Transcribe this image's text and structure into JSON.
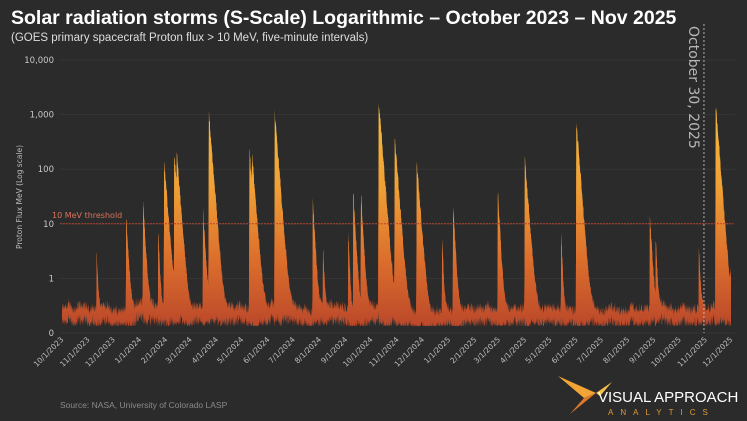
{
  "chart_data": {
    "type": "area",
    "title": "Solar radiation storms (S-Scale) Logarithmic – October 2023 – Nov 2025",
    "subtitle": "(GOES primary spacecraft Proton flux > 10 MeV, five-minute intervals)",
    "ylabel": "Proton Flux MeV (Log scale)",
    "xlabel": "",
    "yscale": "log",
    "ylim": [
      0.1,
      10000
    ],
    "xlim": [
      "2023-10-01",
      "2025-12-01"
    ],
    "grid": true,
    "yticks": [
      {
        "value": 0.1,
        "label": "0"
      },
      {
        "value": 1,
        "label": "1"
      },
      {
        "value": 10,
        "label": "10"
      },
      {
        "value": 100,
        "label": "100"
      },
      {
        "value": 1000,
        "label": "1,000"
      },
      {
        "value": 10000,
        "label": "10,000"
      }
    ],
    "xticks": [
      "10/1/2023",
      "11/1/2023",
      "12/1/2023",
      "1/1/2024",
      "2/1/2024",
      "3/1/2024",
      "4/1/2024",
      "5/1/2024",
      "6/1/2024",
      "7/1/2024",
      "8/1/2024",
      "9/1/2024",
      "10/1/2024",
      "11/1/2024",
      "12/1/2024",
      "1/1/2025",
      "2/1/2025",
      "3/1/2025",
      "4/1/2025",
      "5/1/2025",
      "6/1/2025",
      "7/1/2025",
      "8/1/2025",
      "9/1/2025",
      "10/1/2025",
      "11/1/2025",
      "12/1/2025"
    ],
    "baseline_flux_range": [
      0.15,
      0.45
    ],
    "events": [
      {
        "date": "2023-11-11",
        "peak": 2.7
      },
      {
        "date": "2023-12-16",
        "peak": 13
      },
      {
        "date": "2024-01-05",
        "peak": 25
      },
      {
        "date": "2024-01-23",
        "peak": 7
      },
      {
        "date": "2024-01-30",
        "peak": 135
      },
      {
        "date": "2024-02-11",
        "peak": 180
      },
      {
        "date": "2024-02-14",
        "peak": 130
      },
      {
        "date": "2024-03-16",
        "peak": 17
      },
      {
        "date": "2024-03-23",
        "peak": 1000
      },
      {
        "date": "2024-05-10",
        "peak": 210
      },
      {
        "date": "2024-05-13",
        "peak": 130
      },
      {
        "date": "2024-06-09",
        "peak": 1050
      },
      {
        "date": "2024-07-24",
        "peak": 25
      },
      {
        "date": "2024-08-05",
        "peak": 3.6
      },
      {
        "date": "2024-09-04",
        "peak": 6
      },
      {
        "date": "2024-09-10",
        "peak": 34
      },
      {
        "date": "2024-09-19",
        "peak": 34
      },
      {
        "date": "2024-10-10",
        "peak": 1800
      },
      {
        "date": "2024-10-29",
        "peak": 370
      },
      {
        "date": "2024-11-24",
        "peak": 130
      },
      {
        "date": "2024-12-24",
        "peak": 5
      },
      {
        "date": "2025-01-06",
        "peak": 21
      },
      {
        "date": "2025-02-28",
        "peak": 37
      },
      {
        "date": "2025-04-01",
        "peak": 150
      },
      {
        "date": "2025-05-14",
        "peak": 5.8
      },
      {
        "date": "2025-06-01",
        "peak": 700
      },
      {
        "date": "2025-08-27",
        "peak": 13
      },
      {
        "date": "2025-09-03",
        "peak": 5
      },
      {
        "date": "2025-10-24",
        "peak": 3.6
      },
      {
        "date": "2025-11-13",
        "peak": 1500
      },
      {
        "date": "2025-11-30",
        "peak": 0.5
      }
    ],
    "threshold": {
      "value": 10,
      "label": "10 MeV threshold",
      "color": "#b5452e"
    },
    "marker": {
      "date": "2025-10-30",
      "label": "October 30, 2025"
    },
    "colors": {
      "background": "#2b2b2b",
      "fill_low": "#c04a28",
      "fill_mid": "#e07a2c",
      "fill_high": "#f6b83a"
    }
  },
  "source": "Source:  NASA, University of Colorado LASP",
  "logo": {
    "main": "VISUAL APPROACH",
    "sub": "ANALYTICS"
  }
}
